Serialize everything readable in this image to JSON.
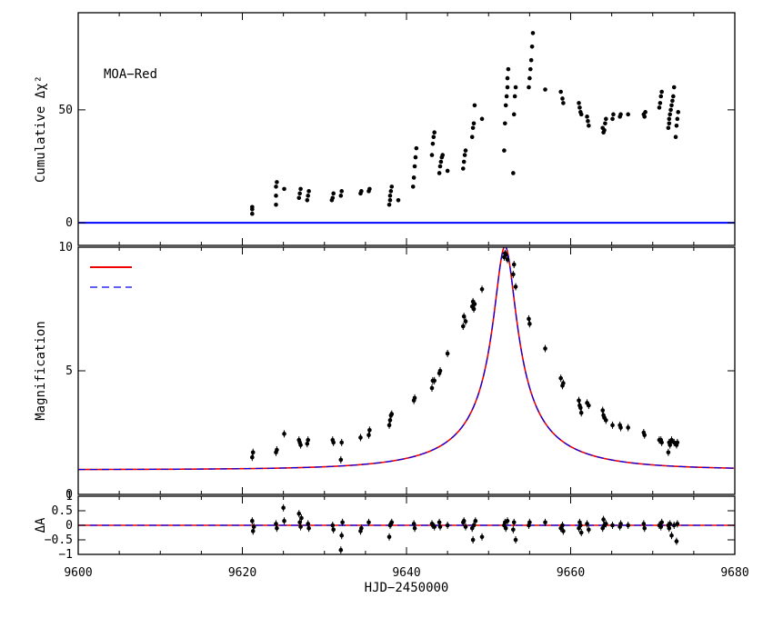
{
  "chart_data": {
    "type": "scatter",
    "shared_x": {
      "label": "HJD−2450000",
      "range": [
        9600,
        9680
      ],
      "ticks": [
        9600,
        9620,
        9640,
        9660,
        9680
      ],
      "tick_labels": [
        "9600",
        "9620",
        "9640",
        "9660",
        "9680"
      ]
    },
    "panels": [
      {
        "id": "chi2",
        "ylabel": "Cumulative Δχ²",
        "annotation": "MOA−Red",
        "ylim": [
          -10,
          93
        ],
        "yticks": [
          0,
          50
        ],
        "ytick_labels": [
          "0",
          "50"
        ],
        "reference_line": {
          "y": 0,
          "color": "#0000ff"
        },
        "points_x": [
          9621.2,
          9621.2,
          9621.2,
          9624.1,
          9624.1,
          9624.1,
          9624.2,
          9625.1,
          9626.9,
          9627.0,
          9627.1,
          9627.9,
          9628.0,
          9628.1,
          9630.9,
          9631.0,
          9631.1,
          9632.0,
          9632.1,
          9634.4,
          9634.5,
          9635.4,
          9635.5,
          9637.9,
          9638.0,
          9638.0,
          9638.1,
          9638.2,
          9639.0,
          9640.8,
          9640.9,
          9641.0,
          9641.1,
          9641.2,
          9643.1,
          9643.2,
          9643.3,
          9643.4,
          9644.0,
          9644.1,
          9644.2,
          9644.3,
          9644.4,
          9645.0,
          9646.9,
          9647.0,
          9647.1,
          9647.2,
          9648.0,
          9648.1,
          9648.2,
          9648.3,
          9649.2,
          9651.9,
          9652.0,
          9652.1,
          9652.2,
          9652.3,
          9652.3,
          9652.4,
          9653.0,
          9653.1,
          9653.2,
          9653.3,
          9654.9,
          9655.0,
          9655.1,
          9655.2,
          9655.3,
          9655.4,
          9656.9,
          9658.8,
          9659.0,
          9659.1,
          9661.0,
          9661.1,
          9661.2,
          9661.3,
          9662.0,
          9662.1,
          9662.2,
          9663.9,
          9664.0,
          9664.1,
          9664.2,
          9664.3,
          9665.1,
          9665.2,
          9666.0,
          9666.1,
          9667.0,
          9668.9,
          9669.0,
          9669.1,
          9670.8,
          9670.9,
          9671.0,
          9671.1,
          9671.9,
          9672.0,
          9672.0,
          9672.1,
          9672.2,
          9672.3,
          9672.4,
          9672.5,
          9672.6,
          9672.8,
          9672.9,
          9673.0,
          9673.1
        ],
        "points_y": [
          4,
          6,
          7,
          8,
          12,
          16,
          18,
          15,
          11,
          13,
          15,
          10,
          12,
          14,
          10,
          11,
          13,
          12,
          14,
          13,
          14,
          14,
          15,
          8,
          10,
          12,
          14,
          16,
          10,
          16,
          20,
          25,
          29,
          33,
          30,
          35,
          38,
          40,
          22,
          25,
          27,
          29,
          30,
          23,
          24,
          27,
          30,
          32,
          38,
          42,
          44,
          52,
          46,
          32,
          44,
          52,
          56,
          60,
          64,
          68,
          22,
          48,
          56,
          60,
          60,
          64,
          68,
          72,
          78,
          84,
          59,
          58,
          55,
          53,
          53,
          51,
          49,
          48,
          47,
          45,
          43,
          42,
          40,
          41,
          44,
          46,
          46,
          48,
          47,
          48,
          48,
          48,
          47,
          49,
          51,
          53,
          56,
          58,
          42,
          44,
          46,
          48,
          50,
          52,
          54,
          56,
          60,
          38,
          43,
          46,
          49
        ]
      },
      {
        "id": "magnification",
        "ylabel": "Magnification",
        "ylim": [
          0,
          10
        ],
        "yticks": [
          0,
          5,
          10
        ],
        "ytick_labels": [
          "0",
          "5",
          "10"
        ],
        "model": {
          "t0": 9652,
          "tE": 14,
          "u0": 0.1
        },
        "legend": {
          "placement": "top-left",
          "entries": [
            {
              "style": "solid",
              "color": "#ee0000",
              "label": ""
            },
            {
              "style": "dashed",
              "color": "#0000ee",
              "label": ""
            }
          ]
        },
        "points_x": [
          9621.2,
          9621.3,
          9624.1,
          9624.2,
          9625.1,
          9626.9,
          9627.0,
          9627.1,
          9627.9,
          9628.0,
          9631.0,
          9631.1,
          9632.0,
          9632.1,
          9634.4,
          9635.4,
          9635.5,
          9637.9,
          9638.0,
          9638.1,
          9638.2,
          9640.9,
          9641.0,
          9643.1,
          9643.2,
          9643.4,
          9644.0,
          9644.1,
          9645.0,
          9646.9,
          9647.0,
          9647.2,
          9648.0,
          9648.1,
          9648.2,
          9648.3,
          9649.2,
          9651.9,
          9652.0,
          9652.1,
          9652.3,
          9653.0,
          9653.1,
          9653.3,
          9654.9,
          9655.0,
          9656.9,
          9658.8,
          9659.0,
          9659.1,
          9661.0,
          9661.1,
          9661.2,
          9661.3,
          9662.0,
          9662.2,
          9663.9,
          9664.0,
          9664.1,
          9664.3,
          9665.1,
          9666.0,
          9666.1,
          9667.0,
          9668.9,
          9669.0,
          9670.8,
          9671.0,
          9671.1,
          9671.9,
          9672.0,
          9672.1,
          9672.3,
          9672.6,
          9672.9,
          9673.0
        ],
        "points_y": [
          1.5,
          1.7,
          1.7,
          1.8,
          2.45,
          2.2,
          2.1,
          2.0,
          2.05,
          2.2,
          2.2,
          2.1,
          1.4,
          2.1,
          2.3,
          2.4,
          2.6,
          2.8,
          3.0,
          3.2,
          3.25,
          3.8,
          3.9,
          4.3,
          4.6,
          4.6,
          4.9,
          5.0,
          5.7,
          6.8,
          7.2,
          7.0,
          7.6,
          7.8,
          7.5,
          7.7,
          8.3,
          9.6,
          9.75,
          9.7,
          9.5,
          8.9,
          9.3,
          8.4,
          7.1,
          6.9,
          5.9,
          4.7,
          4.4,
          4.5,
          3.8,
          3.6,
          3.5,
          3.3,
          3.7,
          3.6,
          3.4,
          3.2,
          3.1,
          3.0,
          2.8,
          2.8,
          2.7,
          2.7,
          2.5,
          2.4,
          2.2,
          2.2,
          2.1,
          1.7,
          2.1,
          2.0,
          2.2,
          2.1,
          2.0,
          2.1
        ]
      },
      {
        "id": "residual",
        "ylabel": "ΔA",
        "ylim": [
          -1,
          1
        ],
        "yticks": [
          -1,
          -0.5,
          0,
          0.5,
          1
        ],
        "ytick_labels": [
          "−1",
          "−0.5",
          "0",
          "0.5",
          "1"
        ],
        "points_x": [
          9621.2,
          9621.3,
          9621.4,
          9624.1,
          9624.2,
          9625.0,
          9625.1,
          9626.9,
          9627.0,
          9627.1,
          9627.2,
          9628.0,
          9628.1,
          9631.0,
          9631.1,
          9632.0,
          9632.1,
          9632.2,
          9634.4,
          9634.5,
          9635.4,
          9637.9,
          9638.0,
          9638.1,
          9638.2,
          9640.9,
          9641.0,
          9643.1,
          9643.2,
          9643.4,
          9644.0,
          9644.1,
          9645.0,
          9646.9,
          9647.0,
          9647.2,
          9648.0,
          9648.1,
          9648.2,
          9648.4,
          9649.2,
          9651.9,
          9652.0,
          9652.1,
          9652.3,
          9653.0,
          9653.1,
          9653.3,
          9654.9,
          9655.0,
          9656.9,
          9658.8,
          9659.0,
          9659.1,
          9661.0,
          9661.1,
          9661.2,
          9661.3,
          9662.0,
          9662.2,
          9663.9,
          9664.0,
          9664.1,
          9664.3,
          9665.1,
          9666.0,
          9666.1,
          9667.0,
          9668.9,
          9669.0,
          9670.8,
          9671.0,
          9671.1,
          9671.9,
          9672.0,
          9672.1,
          9672.3,
          9672.6,
          9672.9,
          9673.0
        ],
        "points_y": [
          0.15,
          -0.2,
          -0.05,
          0.05,
          -0.1,
          0.6,
          0.15,
          0.4,
          0.1,
          -0.05,
          0.25,
          0.05,
          -0.1,
          0.0,
          -0.15,
          -0.85,
          -0.35,
          0.1,
          -0.2,
          -0.1,
          0.1,
          -0.4,
          0.0,
          0.05,
          0.1,
          0.05,
          -0.1,
          0.05,
          0.0,
          -0.05,
          0.1,
          -0.05,
          0.0,
          0.1,
          0.15,
          -0.05,
          -0.1,
          -0.5,
          0.0,
          0.15,
          -0.4,
          0.0,
          0.1,
          -0.1,
          0.15,
          -0.15,
          0.1,
          -0.5,
          0.0,
          0.1,
          0.1,
          -0.1,
          0.0,
          -0.2,
          -0.1,
          0.1,
          0.0,
          -0.25,
          0.05,
          -0.15,
          -0.1,
          0.2,
          0.0,
          0.05,
          0.0,
          -0.05,
          0.05,
          0.0,
          0.05,
          -0.1,
          0.0,
          -0.05,
          0.1,
          0.0,
          -0.1,
          0.05,
          -0.35,
          0.0,
          -0.55,
          0.05
        ]
      }
    ]
  }
}
